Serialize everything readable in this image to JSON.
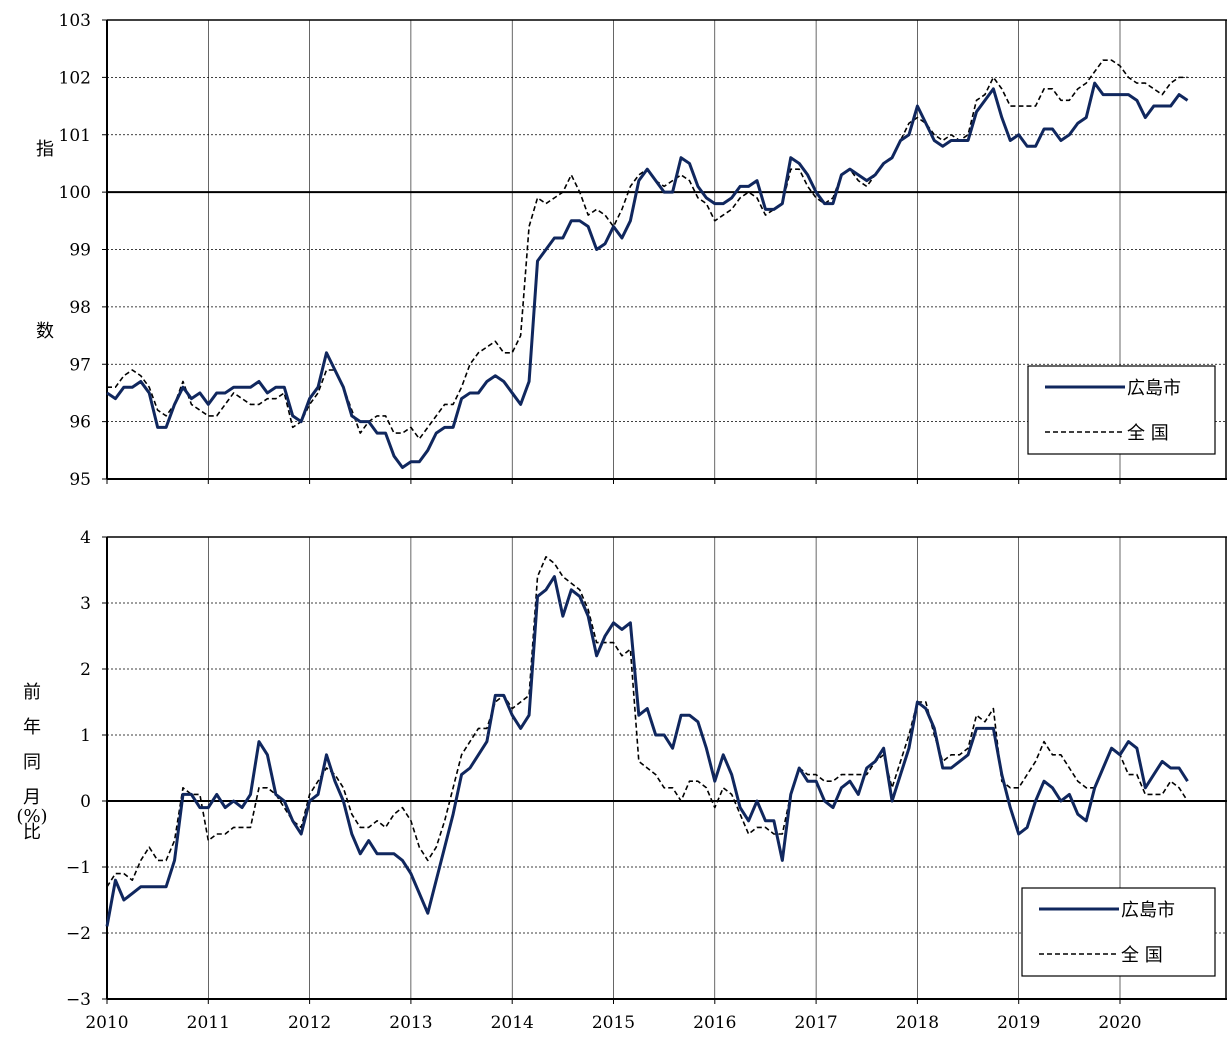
{
  "chart_data": [
    {
      "type": "line",
      "ylabel_chars": [
        "指",
        "数"
      ],
      "ylim": [
        95,
        103
      ],
      "yticks": [
        95,
        96,
        97,
        98,
        99,
        100,
        101,
        102,
        103
      ],
      "baseline": 100,
      "grid": true,
      "legend": {
        "position": "bottom-right",
        "entries": [
          "広島市",
          "全 国"
        ]
      },
      "series": [
        {
          "name": "広島市",
          "color": "#10275e",
          "style": "solid",
          "values": [
            96.5,
            96.4,
            96.6,
            96.6,
            96.7,
            96.5,
            95.9,
            95.9,
            96.3,
            96.6,
            96.4,
            96.5,
            96.3,
            96.5,
            96.5,
            96.6,
            96.6,
            96.6,
            96.7,
            96.5,
            96.6,
            96.6,
            96.1,
            96.0,
            96.4,
            96.6,
            97.2,
            96.9,
            96.6,
            96.1,
            96.0,
            96.0,
            95.8,
            95.8,
            95.4,
            95.2,
            95.3,
            95.3,
            95.5,
            95.8,
            95.9,
            95.9,
            96.4,
            96.5,
            96.5,
            96.7,
            96.8,
            96.7,
            96.5,
            96.3,
            96.7,
            98.8,
            99.0,
            99.2,
            99.2,
            99.5,
            99.5,
            99.4,
            99.0,
            99.1,
            99.4,
            99.2,
            99.5,
            100.2,
            100.4,
            100.2,
            100.0,
            100.0,
            100.6,
            100.5,
            100.1,
            99.9,
            99.8,
            99.8,
            99.9,
            100.1,
            100.1,
            100.2,
            99.7,
            99.7,
            99.8,
            100.6,
            100.5,
            100.3,
            100.0,
            99.8,
            99.8,
            100.3,
            100.4,
            100.3,
            100.2,
            100.3,
            100.5,
            100.6,
            100.9,
            101.0,
            101.5,
            101.2,
            100.9,
            100.8,
            100.9,
            100.9,
            100.9,
            101.4,
            101.6,
            101.8,
            101.3,
            100.9,
            101.0,
            100.8,
            100.8,
            101.1,
            101.1,
            100.9,
            101.0,
            101.2,
            101.3,
            101.9,
            101.7,
            101.7,
            101.7,
            101.7,
            101.6,
            101.3,
            101.5,
            101.5,
            101.5,
            101.7,
            101.6
          ]
        },
        {
          "name": "全 国",
          "color": "#000000",
          "style": "dashed",
          "values": [
            96.6,
            96.6,
            96.8,
            96.9,
            96.8,
            96.6,
            96.2,
            96.1,
            96.3,
            96.7,
            96.3,
            96.2,
            96.1,
            96.1,
            96.3,
            96.5,
            96.4,
            96.3,
            96.3,
            96.4,
            96.4,
            96.5,
            95.9,
            96.0,
            96.3,
            96.5,
            96.9,
            96.9,
            96.6,
            96.2,
            95.8,
            96.0,
            96.1,
            96.1,
            95.8,
            95.8,
            95.9,
            95.7,
            95.9,
            96.1,
            96.3,
            96.3,
            96.6,
            97.0,
            97.2,
            97.3,
            97.4,
            97.2,
            97.2,
            97.5,
            99.4,
            99.9,
            99.8,
            99.9,
            100.0,
            100.3,
            100.0,
            99.6,
            99.7,
            99.6,
            99.4,
            99.7,
            100.1,
            100.3,
            100.4,
            100.2,
            100.1,
            100.2,
            100.3,
            100.2,
            99.9,
            99.8,
            99.5,
            99.6,
            99.7,
            99.9,
            100.0,
            99.9,
            99.6,
            99.7,
            99.8,
            100.4,
            100.4,
            100.1,
            99.9,
            99.8,
            99.9,
            100.3,
            100.4,
            100.2,
            100.1,
            100.3,
            100.5,
            100.6,
            100.9,
            101.2,
            101.3,
            101.2,
            101.0,
            100.9,
            101.0,
            100.9,
            101.0,
            101.6,
            101.7,
            102.0,
            101.8,
            101.5,
            101.5,
            101.5,
            101.5,
            101.8,
            101.8,
            101.6,
            101.6,
            101.8,
            101.9,
            102.1,
            102.3,
            102.3,
            102.2,
            102.0,
            101.9,
            101.9,
            101.8,
            101.7,
            101.9,
            102.0,
            102.0
          ]
        }
      ]
    },
    {
      "type": "line",
      "ylabel_chars": [
        "前",
        "年",
        "同",
        "月",
        "比"
      ],
      "ylabel_unit": "(%)",
      "ylim": [
        -3,
        4
      ],
      "yticks": [
        -3,
        -2,
        -1,
        0,
        1,
        2,
        3,
        4
      ],
      "ytick_labels": [
        "−3",
        "−2",
        "−1",
        "0",
        "1",
        "2",
        "3",
        "4"
      ],
      "baseline": 0,
      "grid": true,
      "legend": {
        "position": "bottom-right",
        "entries": [
          "広島市",
          "全 国"
        ]
      },
      "series": [
        {
          "name": "広島市",
          "color": "#10275e",
          "style": "solid",
          "values": [
            -1.9,
            -1.2,
            -1.5,
            -1.4,
            -1.3,
            -1.3,
            -1.3,
            -1.3,
            -0.9,
            0.1,
            0.1,
            -0.1,
            -0.1,
            0.1,
            -0.1,
            0.0,
            -0.1,
            0.1,
            0.9,
            0.7,
            0.1,
            0.0,
            -0.3,
            -0.5,
            0.0,
            0.1,
            0.7,
            0.3,
            0.0,
            -0.5,
            -0.8,
            -0.6,
            -0.8,
            -0.8,
            -0.8,
            -0.9,
            -1.1,
            -1.4,
            -1.7,
            -1.2,
            -0.7,
            -0.2,
            0.4,
            0.5,
            0.7,
            0.9,
            1.6,
            1.6,
            1.3,
            1.1,
            1.3,
            3.1,
            3.2,
            3.4,
            2.8,
            3.2,
            3.1,
            2.8,
            2.2,
            2.5,
            2.7,
            2.6,
            2.7,
            1.3,
            1.4,
            1.0,
            1.0,
            0.8,
            1.3,
            1.3,
            1.2,
            0.8,
            0.3,
            0.7,
            0.4,
            -0.1,
            -0.3,
            0.0,
            -0.3,
            -0.3,
            -0.9,
            0.1,
            0.5,
            0.3,
            0.3,
            0.0,
            -0.1,
            0.2,
            0.3,
            0.1,
            0.5,
            0.6,
            0.8,
            0.0,
            0.4,
            0.8,
            1.5,
            1.4,
            1.1,
            0.5,
            0.5,
            0.6,
            0.7,
            1.1,
            1.1,
            1.1,
            0.4,
            -0.1,
            -0.5,
            -0.4,
            0.0,
            0.3,
            0.2,
            0.0,
            0.1,
            -0.2,
            -0.3,
            0.2,
            0.5,
            0.8,
            0.7,
            0.9,
            0.8,
            0.2,
            0.4,
            0.6,
            0.5,
            0.5,
            0.3
          ]
        },
        {
          "name": "全 国",
          "color": "#000000",
          "style": "dashed",
          "values": [
            -1.3,
            -1.1,
            -1.1,
            -1.2,
            -0.9,
            -0.7,
            -0.9,
            -0.9,
            -0.6,
            0.2,
            0.1,
            0.1,
            -0.6,
            -0.5,
            -0.5,
            -0.4,
            -0.4,
            -0.4,
            0.2,
            0.2,
            0.1,
            -0.1,
            -0.3,
            -0.4,
            0.1,
            0.3,
            0.5,
            0.4,
            0.2,
            -0.2,
            -0.4,
            -0.4,
            -0.3,
            -0.4,
            -0.2,
            -0.1,
            -0.3,
            -0.7,
            -0.9,
            -0.7,
            -0.3,
            0.2,
            0.7,
            0.9,
            1.1,
            1.1,
            1.5,
            1.6,
            1.4,
            1.5,
            1.6,
            3.4,
            3.7,
            3.6,
            3.4,
            3.3,
            3.2,
            2.9,
            2.4,
            2.4,
            2.4,
            2.2,
            2.3,
            0.6,
            0.5,
            0.4,
            0.2,
            0.2,
            0.0,
            0.3,
            0.3,
            0.2,
            -0.1,
            0.2,
            0.1,
            -0.2,
            -0.5,
            -0.4,
            -0.4,
            -0.5,
            -0.5,
            0.1,
            0.5,
            0.4,
            0.4,
            0.3,
            0.3,
            0.4,
            0.4,
            0.4,
            0.4,
            0.6,
            0.7,
            0.2,
            0.6,
            1.0,
            1.5,
            1.5,
            1.0,
            0.6,
            0.7,
            0.7,
            0.8,
            1.3,
            1.2,
            1.4,
            0.3,
            0.2,
            0.2,
            0.4,
            0.6,
            0.9,
            0.7,
            0.7,
            0.5,
            0.3,
            0.2,
            0.2,
            0.5,
            0.8,
            0.7,
            0.4,
            0.4,
            0.1,
            0.1,
            0.1,
            0.3,
            0.2,
            0.0
          ]
        }
      ]
    }
  ],
  "x_axis": {
    "start_year": 2010,
    "points_per_year": 12,
    "labels": [
      "2010",
      "2011",
      "2012",
      "2013",
      "2014",
      "2015",
      "2016",
      "2017",
      "2018",
      "2019",
      "2020"
    ]
  }
}
